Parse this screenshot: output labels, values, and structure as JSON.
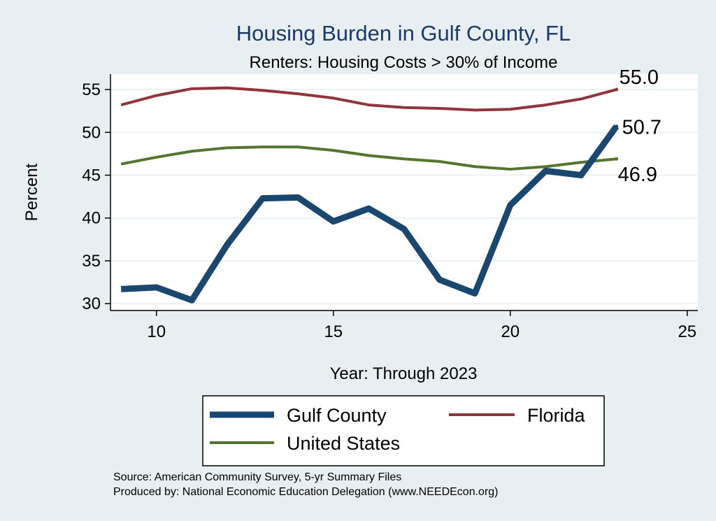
{
  "chart_data": {
    "type": "line",
    "title": "Housing Burden in Gulf County, FL",
    "subtitle": "Renters: Housing Costs > 30% of Income",
    "xlabel": "Year: Through 2023",
    "ylabel": "Percent",
    "xlim": [
      8.7,
      25.3
    ],
    "ylim": [
      29.2,
      56.8
    ],
    "xticks": [
      10,
      15,
      20,
      25
    ],
    "yticks": [
      30,
      35,
      40,
      45,
      50,
      55
    ],
    "grid": true,
    "x": [
      9,
      10,
      11,
      12,
      13,
      14,
      15,
      16,
      17,
      18,
      19,
      20,
      21,
      22,
      23
    ],
    "series": [
      {
        "name": "Gulf County",
        "color": "#1a476f",
        "values": [
          31.7,
          31.9,
          30.4,
          36.9,
          42.3,
          42.4,
          39.6,
          41.1,
          38.7,
          32.8,
          31.2,
          41.5,
          45.5,
          45.0,
          50.7
        ],
        "end_label": "50.7"
      },
      {
        "name": "Florida",
        "color": "#90353b",
        "values": [
          53.2,
          54.3,
          55.1,
          55.2,
          54.9,
          54.5,
          54.0,
          53.2,
          52.9,
          52.8,
          52.6,
          52.7,
          53.2,
          53.9,
          55.0
        ],
        "end_label": "55.0"
      },
      {
        "name": "United States",
        "color": "#55752f",
        "values": [
          46.3,
          47.1,
          47.8,
          48.2,
          48.3,
          48.3,
          47.9,
          47.3,
          46.9,
          46.6,
          46.0,
          45.7,
          46.0,
          46.5,
          46.9
        ],
        "end_label": "46.9"
      }
    ],
    "legend_position": "bottom"
  },
  "notes": {
    "source": "Source: American Community Survey, 5-yr Summary Files",
    "produced_by": "Produced by: National Economic Education Delegation (www.NEEDEcon.org)"
  }
}
